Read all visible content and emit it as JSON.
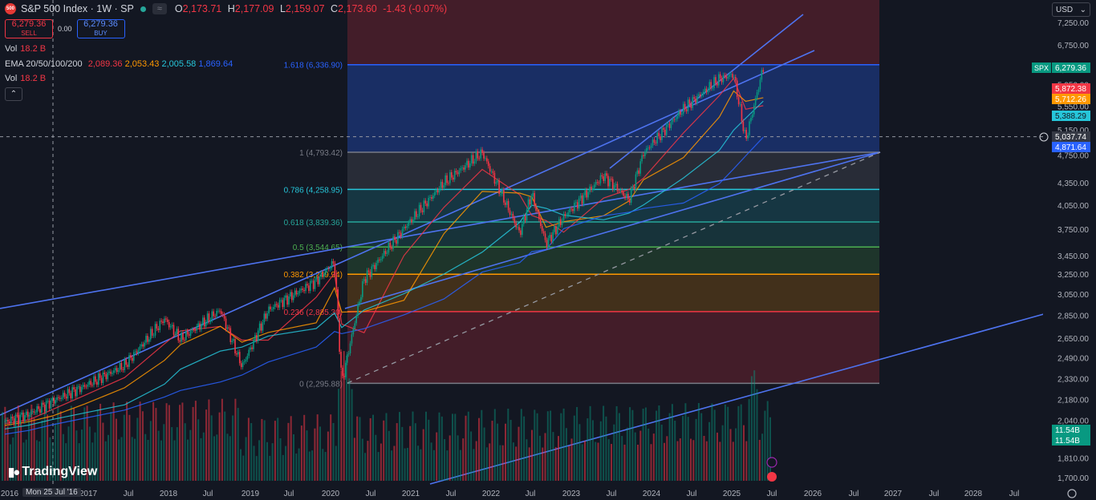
{
  "header": {
    "logo_text": "500",
    "title": "S&P 500 Index · 1W · SP",
    "wave_btn": "≈",
    "ohlc": [
      {
        "k": "O",
        "v": "2,173.71"
      },
      {
        "k": "H",
        "v": "2,177.09"
      },
      {
        "k": "L",
        "v": "2,159.07"
      },
      {
        "k": "C",
        "v": "2,173.60"
      },
      {
        "k": "",
        "v": "-1.43 (-0.07%)"
      }
    ]
  },
  "trade": {
    "sell_price": "6,279.36",
    "sell_label": "SELL",
    "spread": "0.00",
    "buy_price": "6,279.36",
    "buy_label": "BUY"
  },
  "indicators": {
    "vol1": {
      "label": "Vol",
      "value": "18.2 B"
    },
    "ema": {
      "label": "EMA 20/50/100/200",
      "values": [
        "2,089.36",
        "2,053.43",
        "2,005.58",
        "1,869.64"
      ],
      "colors": [
        "#f23645",
        "#ff9800",
        "#26c6da",
        "#2962ff"
      ]
    },
    "vol2": {
      "label": "Vol",
      "value": "18.2 B"
    },
    "collapse_icon": "chevron-up"
  },
  "currency": {
    "label": "USD"
  },
  "watermark": "TradingView",
  "crosshair_date": "Mon 25 Jul '16",
  "price_axis": {
    "ticks": [
      "7,250.00",
      "6,750.00",
      "6,250.00",
      "5,950.00",
      "5,550.00",
      "5,150.00",
      "4,750.00",
      "4,350.00",
      "4,050.00",
      "3,750.00",
      "3,450.00",
      "3,250.00",
      "3,050.00",
      "2,850.00",
      "2,650.00",
      "2,490.00",
      "2,330.00",
      "2,180.00",
      "2,040.00",
      "1,810.00",
      "1,700.00"
    ],
    "tags": [
      {
        "text": "SPX",
        "value": "6,279.36",
        "bg": "#089981",
        "fg": "#ffffff"
      },
      {
        "text": "",
        "value": "5,872.38",
        "bg": "#f23645",
        "fg": "#ffffff"
      },
      {
        "text": "",
        "value": "5,712.26",
        "bg": "#ff9800",
        "fg": "#ffffff"
      },
      {
        "text": "",
        "value": "5,388.29",
        "bg": "#26c6da",
        "fg": "#131722"
      },
      {
        "text": "",
        "value": "5,037.74",
        "bg": "#363a45",
        "fg": "#ffffff"
      },
      {
        "text": "",
        "value": "4,871.64",
        "bg": "#2962ff",
        "fg": "#ffffff"
      },
      {
        "text": "",
        "value": "11.54B",
        "bg": "#089981",
        "fg": "#ffffff"
      },
      {
        "text": "",
        "value": "11.54B",
        "bg": "#089981",
        "fg": "#ffffff"
      }
    ]
  },
  "time_axis": [
    "2016",
    "2017",
    "Jul",
    "2018",
    "Jul",
    "2019",
    "Jul",
    "2020",
    "Jul",
    "2021",
    "Jul",
    "2022",
    "Jul",
    "2023",
    "Jul",
    "2024",
    "Jul",
    "2025",
    "Jul",
    "2026",
    "Jul",
    "2027",
    "Jul",
    "2028",
    "Jul"
  ],
  "chart_data": {
    "type": "line",
    "title": "S&P 500 Index · 1W · SP",
    "scale": "log",
    "fib_levels": [
      {
        "ratio": "1.618",
        "value": 6336.9,
        "label": "1.618 (6,336.90)",
        "color": "#2962ff"
      },
      {
        "ratio": "1",
        "value": 4793.42,
        "label": "1 (4,793.42)",
        "color": "#787b86"
      },
      {
        "ratio": "0.786",
        "value": 4258.95,
        "label": "0.786 (4,258.95)",
        "color": "#26c6da"
      },
      {
        "ratio": "0.618",
        "value": 3839.36,
        "label": "0.618 (3,839.36)",
        "color": "#26a69a"
      },
      {
        "ratio": "0.5",
        "value": 3544.65,
        "label": "0.5 (3,544.65)",
        "color": "#4caf50"
      },
      {
        "ratio": "0.382",
        "value": 3249.94,
        "label": "0.382 (3,249.94)",
        "color": "#ff9800"
      },
      {
        "ratio": "0.236",
        "value": 2885.3,
        "label": "0.236 (2,885.30)",
        "color": "#f23645"
      },
      {
        "ratio": "0",
        "value": 2295.88,
        "label": "0 (2,295.88)",
        "color": "#787b86"
      }
    ],
    "price_series": [
      {
        "t": 2016.0,
        "v": 2030
      },
      {
        "t": 2016.3,
        "v": 2080
      },
      {
        "t": 2016.6,
        "v": 2170
      },
      {
        "t": 2017.0,
        "v": 2275
      },
      {
        "t": 2017.5,
        "v": 2430
      },
      {
        "t": 2018.0,
        "v": 2820
      },
      {
        "t": 2018.2,
        "v": 2640
      },
      {
        "t": 2018.7,
        "v": 2900
      },
      {
        "t": 2018.97,
        "v": 2420
      },
      {
        "t": 2019.3,
        "v": 2900
      },
      {
        "t": 2019.9,
        "v": 3180
      },
      {
        "t": 2020.13,
        "v": 3380
      },
      {
        "t": 2020.22,
        "v": 2300
      },
      {
        "t": 2020.5,
        "v": 3200
      },
      {
        "t": 2021.0,
        "v": 3760
      },
      {
        "t": 2021.5,
        "v": 4350
      },
      {
        "t": 2021.98,
        "v": 4790
      },
      {
        "t": 2022.45,
        "v": 3700
      },
      {
        "t": 2022.6,
        "v": 4200
      },
      {
        "t": 2022.78,
        "v": 3580
      },
      {
        "t": 2023.0,
        "v": 3900
      },
      {
        "t": 2023.5,
        "v": 4450
      },
      {
        "t": 2023.82,
        "v": 4120
      },
      {
        "t": 2024.0,
        "v": 4780
      },
      {
        "t": 2024.5,
        "v": 5500
      },
      {
        "t": 2024.95,
        "v": 6060
      },
      {
        "t": 2025.13,
        "v": 6140
      },
      {
        "t": 2025.28,
        "v": 4980
      },
      {
        "t": 2025.5,
        "v": 6279.36
      }
    ],
    "ema_series": [
      {
        "name": "EMA 20",
        "color": "#f23645",
        "last": 5872.38
      },
      {
        "name": "EMA 50",
        "color": "#ff9800",
        "last": 5712.26
      },
      {
        "name": "EMA 100",
        "color": "#26c6da",
        "last": 5388.29
      },
      {
        "name": "EMA 200",
        "color": "#2962ff",
        "last": 4871.64
      }
    ]
  }
}
